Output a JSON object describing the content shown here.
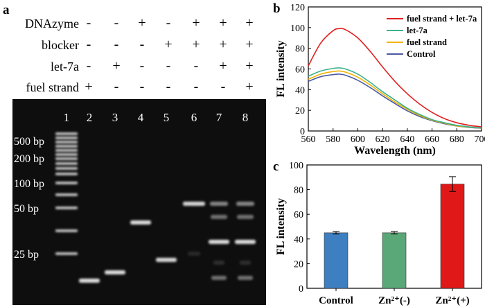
{
  "panel_a": {
    "label": "a",
    "rows": [
      {
        "name": "DNAzyme",
        "signs": [
          "-",
          "-",
          "+",
          "-",
          "+",
          "+",
          "+"
        ]
      },
      {
        "name": "blocker",
        "signs": [
          "-",
          "-",
          "-",
          "+",
          "+",
          "+",
          "+"
        ]
      },
      {
        "name": "let-7a",
        "signs": [
          "-",
          "+",
          "-",
          "-",
          "-",
          "+",
          "+"
        ]
      },
      {
        "name": "fuel strand",
        "signs": [
          "+",
          "-",
          "-",
          "-",
          "-",
          "-",
          "+"
        ]
      }
    ],
    "lane_numbers": [
      "1",
      "2",
      "3",
      "4",
      "5",
      "6",
      "7",
      "8"
    ],
    "marker_labels": [
      "500 bp",
      "200 bp",
      "100 bp",
      "50 bp",
      "25 bp"
    ]
  },
  "chart_data": [
    {
      "panel": "b",
      "type": "line",
      "xlabel": "Wavelength (nm)",
      "ylabel": "FL intensity",
      "xlim": [
        560,
        700
      ],
      "ylim": [
        0,
        120
      ],
      "xticks": [
        560,
        580,
        600,
        620,
        640,
        660,
        680,
        700
      ],
      "yticks": [
        0,
        20,
        40,
        60,
        80,
        100,
        120
      ],
      "x": [
        560,
        570,
        580,
        585,
        590,
        600,
        610,
        620,
        630,
        640,
        650,
        660,
        670,
        680,
        690,
        700
      ],
      "legend_position": "top-right",
      "series": [
        {
          "name": "fuel strand + let-7a",
          "color": "#e02020",
          "values": [
            63,
            85,
            97,
            99,
            98,
            90,
            77,
            62,
            48,
            36,
            26,
            18,
            12,
            8,
            5.5,
            4
          ]
        },
        {
          "name": "let-7a",
          "color": "#3cb08c",
          "values": [
            53,
            58,
            60.5,
            61,
            60,
            55,
            47,
            38,
            30,
            22,
            16,
            11,
            8,
            5.5,
            4,
            3
          ]
        },
        {
          "name": "fuel strand",
          "color": "#f0b400",
          "values": [
            50,
            55,
            57.5,
            58,
            57,
            52,
            44.5,
            36,
            28,
            21,
            15,
            10.5,
            7.5,
            5,
            3.8,
            2.8
          ]
        },
        {
          "name": "Control",
          "color": "#4a5aa0",
          "values": [
            48,
            52.5,
            54.5,
            55,
            54,
            49,
            42,
            34,
            26.5,
            19.5,
            14,
            10,
            7,
            4.8,
            3.5,
            2.6
          ]
        }
      ]
    },
    {
      "panel": "c",
      "type": "bar",
      "ylabel": "FL intensity",
      "ylim": [
        0,
        100
      ],
      "yticks": [
        0,
        20,
        40,
        60,
        80,
        100
      ],
      "categories": [
        "Control",
        "Zn²⁺(-)",
        "Zn²⁺(+)"
      ],
      "values": [
        45,
        45,
        84.5
      ],
      "errors": [
        1,
        1,
        6
      ],
      "colors": [
        "#3d7fc1",
        "#5aa878",
        "#e01818"
      ]
    }
  ]
}
